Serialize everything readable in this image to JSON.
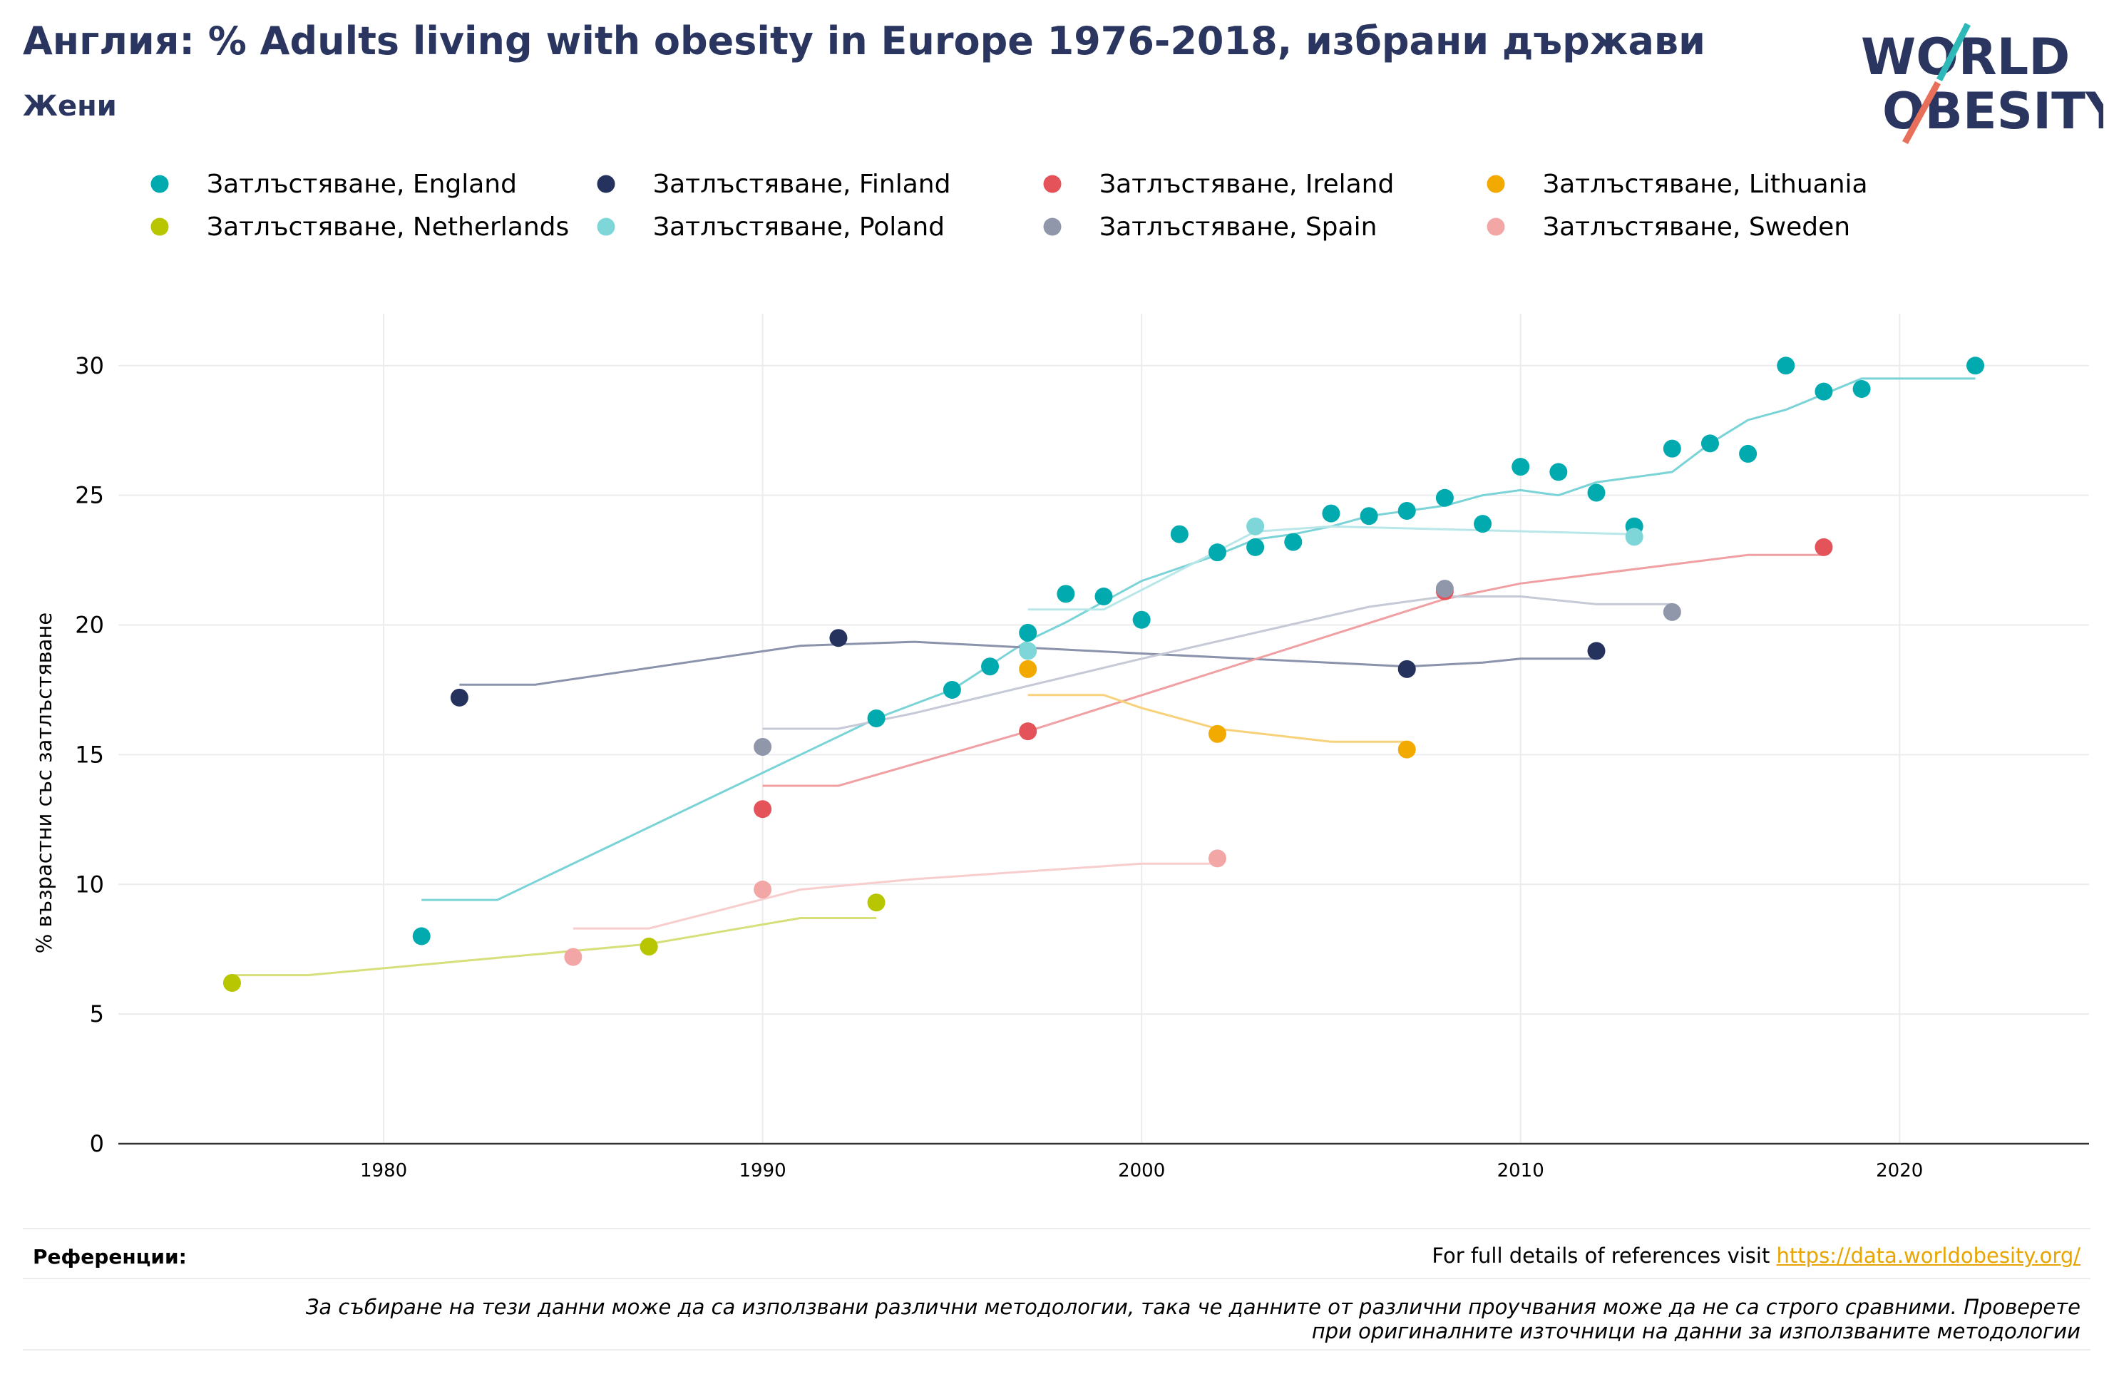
{
  "header": {
    "title": "Англия: % Adults living with obesity in Europe 1976-2018, избрани държави",
    "subtitle": "Жени"
  },
  "logo": {
    "line1": "WORLD",
    "line2": "OBESITY",
    "accent": "#e8705a",
    "accent2": "#2fb8b8",
    "text_color": "#2a3560"
  },
  "footer": {
    "references_label": "Референции:",
    "references_text": "For full details of references visit ",
    "references_link": "https://data.worldobesity.org/",
    "methodology_note": "За събиране на тези данни може да са използвани различни методологии, така че данните от различни проучвания може да не са строго сравними. Проверете при оригиналните източници на данни за използваните методологии"
  },
  "chart_data": {
    "type": "scatter",
    "ylabel": "% възрастни със затлъстяване",
    "xlabel": "",
    "xlim": [
      1973,
      2025
    ],
    "ylim": [
      0,
      32
    ],
    "x_ticks": [
      1980,
      1990,
      2000,
      2010,
      2020
    ],
    "y_ticks": [
      0,
      5,
      10,
      15,
      20,
      25,
      30
    ],
    "grid": true,
    "legend_position": "top",
    "series": [
      {
        "name": "Затлъстяване, England",
        "color": "#00aaaf",
        "line_color": "#7ad3d6",
        "points": [
          [
            1981,
            8.0
          ],
          [
            1993,
            16.4
          ],
          [
            1995,
            17.5
          ],
          [
            1996,
            18.4
          ],
          [
            1997,
            19.7
          ],
          [
            1998,
            21.2
          ],
          [
            1999,
            21.1
          ],
          [
            2000,
            20.2
          ],
          [
            2001,
            23.5
          ],
          [
            2002,
            22.8
          ],
          [
            2003,
            23.0
          ],
          [
            2004,
            23.2
          ],
          [
            2005,
            24.3
          ],
          [
            2006,
            24.2
          ],
          [
            2007,
            24.4
          ],
          [
            2008,
            24.9
          ],
          [
            2009,
            23.9
          ],
          [
            2010,
            26.1
          ],
          [
            2011,
            25.9
          ],
          [
            2012,
            25.1
          ],
          [
            2013,
            23.8
          ],
          [
            2014,
            26.8
          ],
          [
            2015,
            27.0
          ],
          [
            2016,
            26.6
          ],
          [
            2017,
            30.0
          ],
          [
            2018,
            29.0
          ],
          [
            2019,
            29.1
          ],
          [
            2022,
            30.0
          ]
        ],
        "trend": [
          [
            1981,
            9.4
          ],
          [
            1983,
            9.4
          ],
          [
            1993,
            16.4
          ],
          [
            1995,
            17.5
          ],
          [
            1997,
            19.4
          ],
          [
            1998,
            20.1
          ],
          [
            1999,
            20.9
          ],
          [
            2000,
            21.7
          ],
          [
            2001,
            22.2
          ],
          [
            2002,
            22.7
          ],
          [
            2003,
            23.3
          ],
          [
            2004,
            23.5
          ],
          [
            2005,
            23.8
          ],
          [
            2006,
            24.2
          ],
          [
            2007,
            24.4
          ],
          [
            2008,
            24.6
          ],
          [
            2009,
            25.0
          ],
          [
            2010,
            25.2
          ],
          [
            2011,
            25.0
          ],
          [
            2012,
            25.5
          ],
          [
            2013,
            25.7
          ],
          [
            2014,
            25.9
          ],
          [
            2015,
            27.0
          ],
          [
            2016,
            27.9
          ],
          [
            2017,
            28.3
          ],
          [
            2018,
            28.9
          ],
          [
            2019,
            29.5
          ],
          [
            2022,
            29.5
          ]
        ]
      },
      {
        "name": "Затлъстяване, Finland",
        "color": "#25325e",
        "line_color": "#8a93ab",
        "points": [
          [
            1982,
            17.2
          ],
          [
            1992,
            19.5
          ],
          [
            2007,
            18.3
          ],
          [
            2012,
            19.0
          ]
        ],
        "trend": [
          [
            1982,
            17.7
          ],
          [
            1984,
            17.7
          ],
          [
            1991,
            19.2
          ],
          [
            1994,
            19.35
          ],
          [
            2000,
            18.9
          ],
          [
            2007,
            18.4
          ],
          [
            2009,
            18.55
          ],
          [
            2010,
            18.7
          ],
          [
            2012,
            18.7
          ]
        ]
      },
      {
        "name": "Затлъстяване, Ireland",
        "color": "#e4525a",
        "line_color": "#f0a0a3",
        "points": [
          [
            1990,
            12.9
          ],
          [
            1997,
            15.9
          ],
          [
            2008,
            21.3
          ],
          [
            2018,
            23.0
          ]
        ],
        "trend": [
          [
            1990,
            13.8
          ],
          [
            1992,
            13.8
          ],
          [
            1997,
            15.9
          ],
          [
            2008,
            21.0
          ],
          [
            2010,
            21.6
          ],
          [
            2016,
            22.7
          ],
          [
            2018,
            22.7
          ]
        ]
      },
      {
        "name": "Затлъстяване, Lithuania",
        "color": "#f2aa00",
        "line_color": "#f7d27a",
        "points": [
          [
            1997,
            18.3
          ],
          [
            2002,
            15.8
          ],
          [
            2007,
            15.2
          ]
        ],
        "trend": [
          [
            1997,
            17.3
          ],
          [
            1999,
            17.3
          ],
          [
            2000,
            16.8
          ],
          [
            2002,
            16.0
          ],
          [
            2005,
            15.5
          ],
          [
            2007,
            15.5
          ]
        ]
      },
      {
        "name": "Затлъстяване, Netherlands",
        "color": "#b7c600",
        "line_color": "#d6df7a",
        "points": [
          [
            1976,
            6.2
          ],
          [
            1987,
            7.6
          ],
          [
            1993,
            9.3
          ]
        ],
        "trend": [
          [
            1976,
            6.5
          ],
          [
            1978,
            6.5
          ],
          [
            1987,
            7.7
          ],
          [
            1991,
            8.7
          ],
          [
            1993,
            8.7
          ]
        ]
      },
      {
        "name": "Затлъстяване, Poland",
        "color": "#7fd6d9",
        "line_color": "#b9e7e9",
        "points": [
          [
            1997,
            19.0
          ],
          [
            2003,
            23.8
          ],
          [
            2013,
            23.4
          ]
        ],
        "trend": [
          [
            1997,
            20.6
          ],
          [
            1999,
            20.6
          ],
          [
            2003,
            23.6
          ],
          [
            2005,
            23.8
          ],
          [
            2013,
            23.5
          ]
        ]
      },
      {
        "name": "Затлъстяване, Spain",
        "color": "#9097ab",
        "line_color": "#c6c9d6",
        "points": [
          [
            1990,
            15.3
          ],
          [
            2008,
            21.4
          ],
          [
            2014,
            20.5
          ]
        ],
        "trend": [
          [
            1990,
            16.0
          ],
          [
            1992,
            16.0
          ],
          [
            1994,
            16.6
          ],
          [
            2000,
            18.7
          ],
          [
            2006,
            20.7
          ],
          [
            2008,
            21.1
          ],
          [
            2010,
            21.1
          ],
          [
            2012,
            20.8
          ],
          [
            2014,
            20.8
          ]
        ]
      },
      {
        "name": "Затлъстяване, Sweden",
        "color": "#f2a6a6",
        "line_color": "#f7cdcd",
        "points": [
          [
            1985,
            7.2
          ],
          [
            1990,
            9.8
          ],
          [
            2002,
            11.0
          ]
        ],
        "trend": [
          [
            1985,
            8.3
          ],
          [
            1987,
            8.3
          ],
          [
            1991,
            9.8
          ],
          [
            1994,
            10.2
          ],
          [
            2000,
            10.8
          ],
          [
            2002,
            10.8
          ]
        ]
      }
    ]
  }
}
